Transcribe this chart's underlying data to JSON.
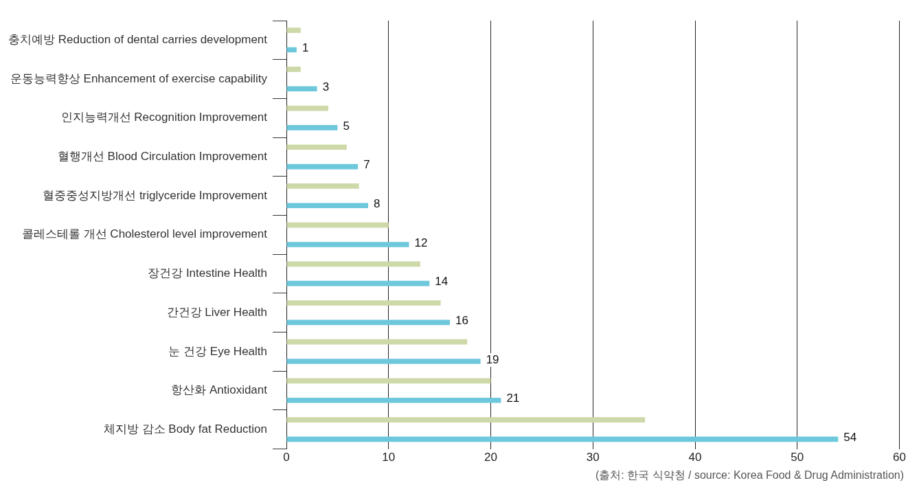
{
  "chart_data": {
    "type": "bar",
    "orientation": "horizontal",
    "categories": [
      "충치예방 Reduction of dental carries development",
      "운동능력향상 Enhancement of exercise capability",
      "인지능력개선 Recognition Improvement",
      "혈행개선 Blood Circulation Improvement",
      "혈중중성지방개선 triglyceride Improvement",
      "콜레스테롤 개선 Cholesterol level improvement",
      "장건강 Intestine Health",
      "간건강 Liver Health",
      "눈 건강 Eye Health",
      "항산화 Antioxidant",
      "체지방 감소 Body fat Reduction"
    ],
    "series": [
      {
        "color": "#cdd9a8",
        "values": [
          1.4,
          1.4,
          4.1,
          5.9,
          7.1,
          10,
          13.1,
          15.1,
          17.7,
          20,
          35.1
        ]
      },
      {
        "color": "#6ec8dc",
        "values": [
          1,
          3,
          5,
          7,
          8,
          12,
          14,
          16,
          19,
          21,
          54
        ],
        "value_labels": [
          "1",
          "3",
          "5",
          "7",
          "8",
          "12",
          "14",
          "16",
          "19",
          "21",
          "54"
        ]
      }
    ],
    "xlim": [
      0,
      60
    ],
    "xticks": [
      0,
      10,
      20,
      30,
      40,
      50,
      60
    ],
    "grid": "x",
    "annotations": [
      "(출처: 한국 식약청 / source: Korea Food & Drug Administration)"
    ]
  }
}
